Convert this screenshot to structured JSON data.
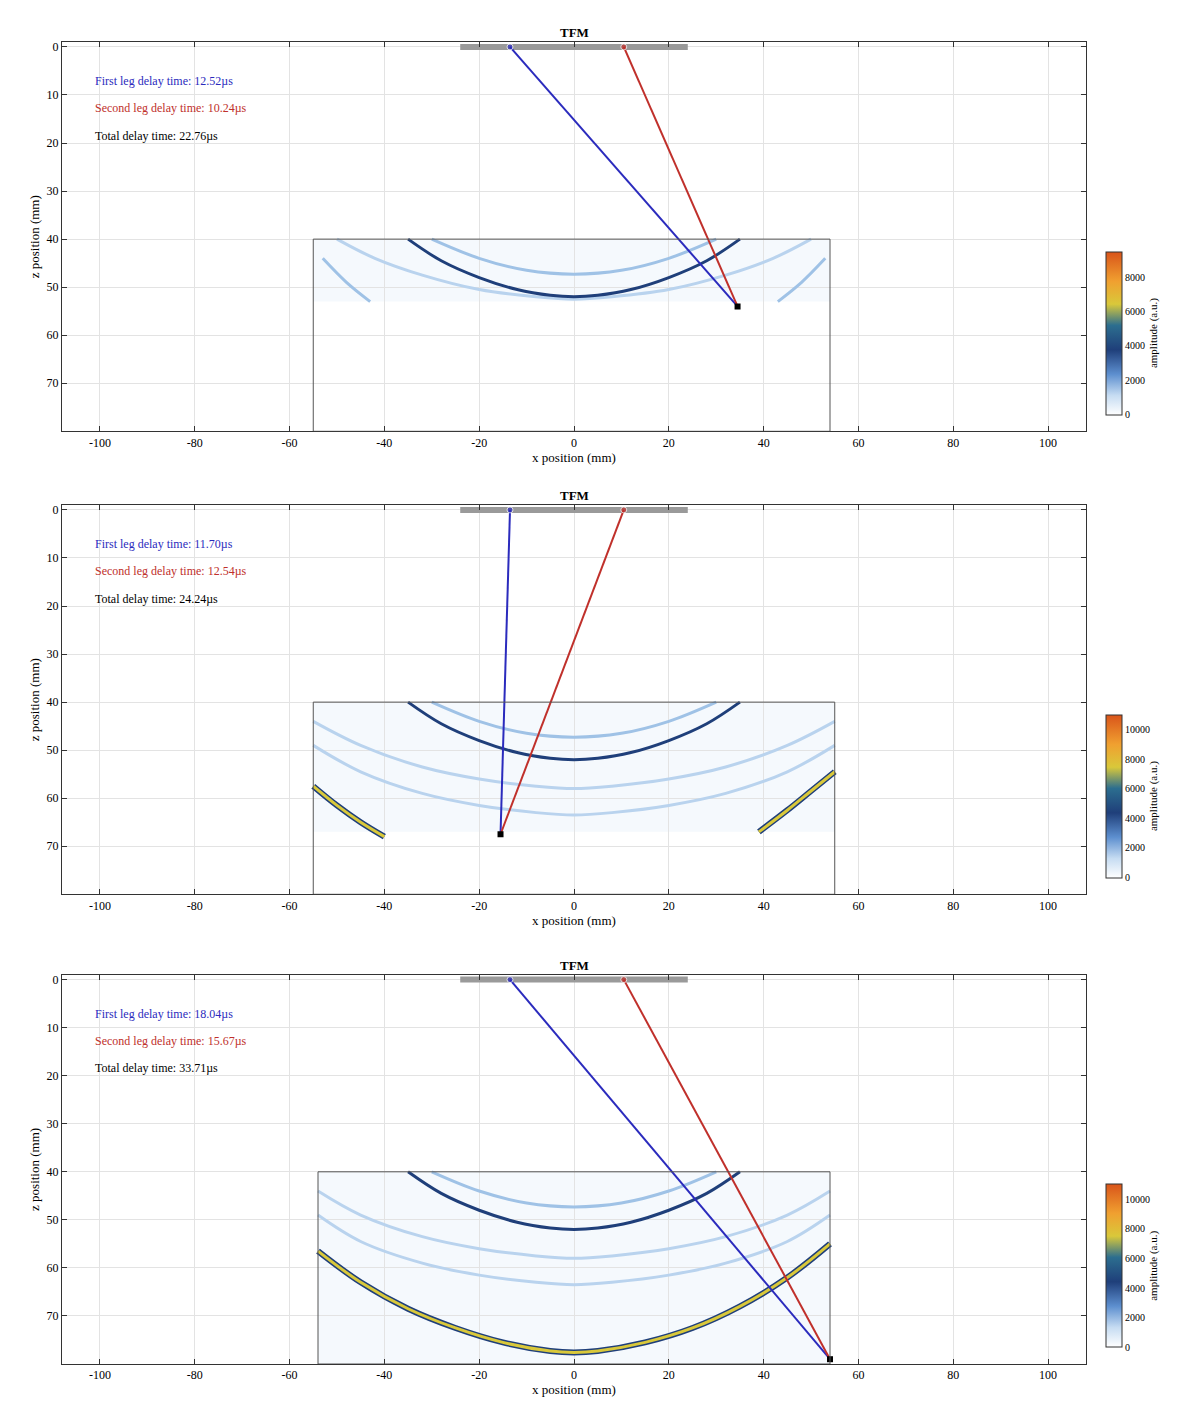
{
  "chart_data": [
    {
      "type": "scatter",
      "title": "TFM",
      "x_label": "x position (mm)",
      "y_label": "z position (mm)",
      "xlim": [
        -108,
        108
      ],
      "ylim": [
        -1,
        80
      ],
      "xticks": [
        -100,
        -80,
        -60,
        -40,
        -20,
        0,
        20,
        40,
        60,
        80,
        100
      ],
      "yticks": [
        0,
        10,
        20,
        30,
        40,
        50,
        60,
        70
      ],
      "grid": true,
      "annotations": [
        {
          "text": "First leg delay time: 12.52µs",
          "color": "#2b2bbd"
        },
        {
          "text": "Second leg delay time: 10.24µs",
          "color": "#c0302b"
        },
        {
          "text": "Total delay time: 22.76µs",
          "color": "#000000"
        }
      ],
      "array_x": [
        -24,
        24
      ],
      "array_z": 0,
      "image_box": {
        "x": [
          -55,
          54
        ],
        "y": [
          40,
          80
        ]
      },
      "image_depth": 53,
      "arcs": [
        {
          "color": "#b9d3ee",
          "x": [
            -50,
            -42,
            -32,
            -20,
            -8,
            0,
            8,
            20,
            32,
            42,
            50
          ],
          "y": [
            40,
            44,
            47.5,
            50.5,
            52,
            52.5,
            52,
            50.5,
            47.5,
            44,
            40
          ]
        },
        {
          "color": "#1f3f7a",
          "x": [
            -35,
            -28,
            -20,
            -12,
            -5,
            0,
            5,
            12,
            20,
            28,
            35
          ],
          "y": [
            40,
            44.5,
            48,
            50.5,
            51.7,
            52,
            51.7,
            50.5,
            48,
            44.5,
            40
          ]
        },
        {
          "color": "#9fc2e6",
          "x": [
            -30,
            -20,
            -10,
            0,
            10,
            20,
            30
          ],
          "y": [
            40,
            44,
            46.5,
            47.3,
            46.5,
            44,
            40
          ]
        },
        {
          "color": "#9fc2e6",
          "x": [
            -53,
            -48,
            -43
          ],
          "y": [
            44,
            49,
            53
          ]
        },
        {
          "color": "#9fc2e6",
          "x": [
            43,
            48,
            53
          ],
          "y": [
            53,
            49,
            44
          ]
        }
      ],
      "series": [
        {
          "color": "#2b2bbd",
          "x": [
            -13.5,
            34.5
          ],
          "y": [
            0,
            54
          ]
        },
        {
          "color": "#c0302b",
          "x": [
            10.5,
            34.5
          ],
          "y": [
            0,
            54
          ]
        }
      ],
      "focus": [
        34.5,
        54
      ],
      "colorbar": {
        "title": "amplitude (a.u.)",
        "range": [
          0,
          9500
        ],
        "ticks": [
          0,
          2000,
          4000,
          6000,
          8000
        ]
      }
    },
    {
      "type": "scatter",
      "title": "TFM",
      "x_label": "x position (mm)",
      "y_label": "z position (mm)",
      "xlim": [
        -108,
        108
      ],
      "ylim": [
        -1,
        80
      ],
      "xticks": [
        -100,
        -80,
        -60,
        -40,
        -20,
        0,
        20,
        40,
        60,
        80,
        100
      ],
      "yticks": [
        0,
        10,
        20,
        30,
        40,
        50,
        60,
        70
      ],
      "grid": true,
      "annotations": [
        {
          "text": "First leg delay time: 11.70µs",
          "color": "#2b2bbd"
        },
        {
          "text": "Second leg delay time: 12.54µs",
          "color": "#c0302b"
        },
        {
          "text": "Total delay time: 24.24µs",
          "color": "#000000"
        }
      ],
      "array_x": [
        -24,
        24
      ],
      "array_z": 0,
      "image_box": {
        "x": [
          -55,
          55
        ],
        "y": [
          40,
          80
        ]
      },
      "image_depth": 67,
      "arcs": [
        {
          "color": "#b9d3ee",
          "x": [
            -55,
            -45,
            -32,
            -20,
            -8,
            0,
            8,
            20,
            32,
            45,
            55
          ],
          "y": [
            44,
            49,
            53.5,
            56,
            57.5,
            58,
            57.5,
            56,
            53.5,
            49,
            44
          ]
        },
        {
          "color": "#b9d3ee",
          "x": [
            -55,
            -45,
            -32,
            -20,
            -8,
            0,
            8,
            20,
            32,
            45,
            55
          ],
          "y": [
            49,
            54.5,
            59,
            61.5,
            63,
            63.5,
            63,
            61.5,
            59,
            54.5,
            49
          ]
        },
        {
          "color": "#1f3f7a",
          "x": [
            -35,
            -28,
            -20,
            -12,
            -5,
            0,
            5,
            12,
            20,
            28,
            35
          ],
          "y": [
            40,
            44.5,
            48,
            50.5,
            51.7,
            52,
            51.7,
            50.5,
            48,
            44.5,
            40
          ]
        },
        {
          "color": "#9fc2e6",
          "x": [
            -30,
            -20,
            -10,
            0,
            10,
            20,
            30
          ],
          "y": [
            40,
            44,
            46.5,
            47.3,
            46.5,
            44,
            40
          ]
        },
        {
          "color": "#d9c83a",
          "x": [
            -55,
            -50,
            -45,
            -40
          ],
          "y": [
            57.5,
            61.5,
            65,
            68
          ]
        },
        {
          "color": "#d9c83a",
          "x": [
            39,
            45,
            50,
            55
          ],
          "y": [
            67,
            62.5,
            58.5,
            54.5
          ]
        }
      ],
      "series": [
        {
          "color": "#2b2bbd",
          "x": [
            -13.5,
            -15.5
          ],
          "y": [
            0,
            67.5
          ]
        },
        {
          "color": "#c0302b",
          "x": [
            10.5,
            -15.5
          ],
          "y": [
            0,
            67.5
          ]
        }
      ],
      "focus": [
        -15.5,
        67.5
      ],
      "colorbar": {
        "title": "amplitude (a.u.)",
        "range": [
          0,
          11000
        ],
        "ticks": [
          0,
          2000,
          4000,
          6000,
          8000,
          10000
        ]
      }
    },
    {
      "type": "scatter",
      "title": "TFM",
      "x_label": "x position (mm)",
      "y_label": "z position (mm)",
      "xlim": [
        -108,
        108
      ],
      "ylim": [
        -1,
        80
      ],
      "xticks": [
        -100,
        -80,
        -60,
        -40,
        -20,
        0,
        20,
        40,
        60,
        80,
        100
      ],
      "yticks": [
        0,
        10,
        20,
        30,
        40,
        50,
        60,
        70
      ],
      "grid": true,
      "annotations": [
        {
          "text": "First leg delay time: 18.04µs",
          "color": "#2b2bbd"
        },
        {
          "text": "Second leg delay time: 15.67µs",
          "color": "#c0302b"
        },
        {
          "text": "Total delay time: 33.71µs",
          "color": "#000000"
        }
      ],
      "array_x": [
        -24,
        24
      ],
      "array_z": 0,
      "image_box": {
        "x": [
          -54,
          54
        ],
        "y": [
          40,
          80
        ]
      },
      "image_depth": 80,
      "arcs": [
        {
          "color": "#b9d3ee",
          "x": [
            -54,
            -45,
            -32,
            -20,
            -8,
            0,
            8,
            20,
            32,
            45,
            54
          ],
          "y": [
            44,
            49,
            53.5,
            56,
            57.5,
            58,
            57.5,
            56,
            53.5,
            49,
            44
          ]
        },
        {
          "color": "#b9d3ee",
          "x": [
            -54,
            -45,
            -32,
            -20,
            -8,
            0,
            8,
            20,
            32,
            45,
            54
          ],
          "y": [
            49,
            54.5,
            59,
            61.5,
            63,
            63.5,
            63,
            61.5,
            59,
            54.5,
            49
          ]
        },
        {
          "color": "#1f3f7a",
          "x": [
            -35,
            -28,
            -20,
            -12,
            -5,
            0,
            5,
            12,
            20,
            28,
            35
          ],
          "y": [
            40,
            44.5,
            48,
            50.5,
            51.7,
            52,
            51.7,
            50.5,
            48,
            44.5,
            40
          ]
        },
        {
          "color": "#9fc2e6",
          "x": [
            -30,
            -20,
            -10,
            0,
            10,
            20,
            30
          ],
          "y": [
            40,
            44,
            46.5,
            47.3,
            46.5,
            44,
            40
          ]
        },
        {
          "color": "#d9c83a",
          "x": [
            -54,
            -45,
            -35,
            -25,
            -15,
            -5,
            0,
            5,
            15,
            25,
            35,
            45,
            54
          ],
          "y": [
            56.5,
            63,
            68.5,
            72.5,
            75.5,
            77.3,
            77.6,
            77.3,
            75.5,
            72.5,
            68,
            62,
            55
          ]
        }
      ],
      "series": [
        {
          "color": "#2b2bbd",
          "x": [
            -13.5,
            54
          ],
          "y": [
            0,
            79
          ]
        },
        {
          "color": "#c0302b",
          "x": [
            10.5,
            54
          ],
          "y": [
            0,
            79
          ]
        }
      ],
      "focus": [
        54,
        79
      ],
      "colorbar": {
        "title": "amplitude (a.u.)",
        "range": [
          0,
          11000
        ],
        "ticks": [
          0,
          2000,
          4000,
          6000,
          8000,
          10000
        ]
      }
    }
  ]
}
